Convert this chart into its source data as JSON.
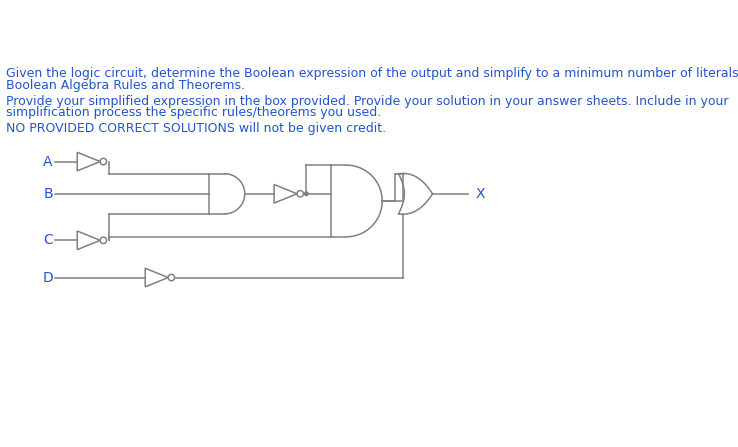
{
  "bg_color": "#ffffff",
  "gate_color": "#808080",
  "blue_color": "#2255cc",
  "title_lines": [
    "Given the logic circuit, determine the Boolean expression of the output and simplify to a minimum number of literals using",
    "Boolean Algebra Rules and Theorems."
  ],
  "body_lines": [
    "Provide your simplified expression in the box provided. Provide your solution in your answer sheets. Include in your",
    "simplification process the specific rules/theorems you used."
  ],
  "warning_line": "NO PROVIDED CORRECT SOLUTIONS will not be given credit.",
  "fig_width": 7.38,
  "fig_height": 4.47,
  "text_fontsize": 9.0,
  "label_fontsize": 10.0
}
